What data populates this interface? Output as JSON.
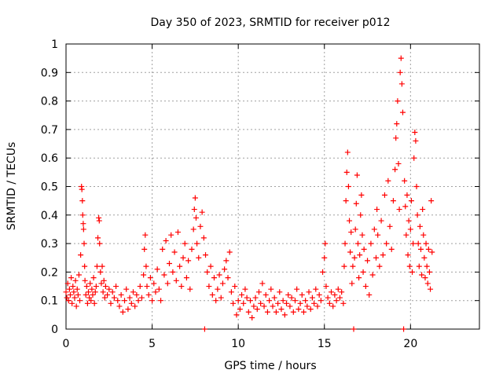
{
  "chart_data": {
    "type": "scatter",
    "title": "Day 350 of 2023, SRMTID for receiver p012",
    "xlabel": "GPS time / hours",
    "ylabel": "SRMTID / TECUs",
    "xlim": [
      0,
      24
    ],
    "ylim": [
      0,
      1
    ],
    "xticks": [
      0,
      5,
      10,
      15,
      20
    ],
    "xtick_labels": [
      "0",
      "5",
      "10",
      "15",
      "20"
    ],
    "yticks": [
      0,
      0.1,
      0.2,
      0.3,
      0.4,
      0.5,
      0.6,
      0.7,
      0.8,
      0.9,
      1
    ],
    "ytick_labels": [
      "0",
      "0.1",
      "0.2",
      "0.3",
      "0.4",
      "0.5",
      "0.6",
      "0.7",
      "0.8",
      "0.9",
      "1"
    ],
    "grid": true,
    "marker": "+",
    "marker_color": "#ff0000",
    "series": [
      {
        "name": "p012",
        "points": [
          [
            0.0,
            0.13
          ],
          [
            0.05,
            0.11
          ],
          [
            0.1,
            0.16
          ],
          [
            0.15,
            0.1
          ],
          [
            0.2,
            0.14
          ],
          [
            0.25,
            0.12
          ],
          [
            0.3,
            0.18
          ],
          [
            0.35,
            0.09
          ],
          [
            0.4,
            0.15
          ],
          [
            0.45,
            0.13
          ],
          [
            0.5,
            0.11
          ],
          [
            0.55,
            0.17
          ],
          [
            0.6,
            0.08
          ],
          [
            0.65,
            0.14
          ],
          [
            0.7,
            0.12
          ],
          [
            0.75,
            0.19
          ],
          [
            0.8,
            0.1
          ],
          [
            0.85,
            0.26
          ],
          [
            0.9,
            0.5
          ],
          [
            0.92,
            0.49
          ],
          [
            0.95,
            0.45
          ],
          [
            0.97,
            0.4
          ],
          [
            1.0,
            0.37
          ],
          [
            1.02,
            0.35
          ],
          [
            1.05,
            0.3
          ],
          [
            1.08,
            0.22
          ],
          [
            1.1,
            0.17
          ],
          [
            1.15,
            0.12
          ],
          [
            1.2,
            0.15
          ],
          [
            1.25,
            0.09
          ],
          [
            1.3,
            0.13
          ],
          [
            1.35,
            0.11
          ],
          [
            1.4,
            0.16
          ],
          [
            1.45,
            0.1
          ],
          [
            1.5,
            0.14
          ],
          [
            1.55,
            0.12
          ],
          [
            1.6,
            0.18
          ],
          [
            1.65,
            0.09
          ],
          [
            1.7,
            0.13
          ],
          [
            1.75,
            0.15
          ],
          [
            1.8,
            0.22
          ],
          [
            1.85,
            0.32
          ],
          [
            1.9,
            0.39
          ],
          [
            1.93,
            0.38
          ],
          [
            1.95,
            0.3
          ],
          [
            2.0,
            0.2
          ],
          [
            2.05,
            0.16
          ],
          [
            2.1,
            0.22
          ],
          [
            2.15,
            0.13
          ],
          [
            2.2,
            0.17
          ],
          [
            2.25,
            0.11
          ],
          [
            2.3,
            0.15
          ],
          [
            2.4,
            0.12
          ],
          [
            2.5,
            0.14
          ],
          [
            2.6,
            0.09
          ],
          [
            2.7,
            0.13
          ],
          [
            2.8,
            0.11
          ],
          [
            2.9,
            0.15
          ],
          [
            3.0,
            0.1
          ],
          [
            3.1,
            0.08
          ],
          [
            3.2,
            0.12
          ],
          [
            3.3,
            0.06
          ],
          [
            3.4,
            0.1
          ],
          [
            3.5,
            0.14
          ],
          [
            3.6,
            0.07
          ],
          [
            3.7,
            0.11
          ],
          [
            3.8,
            0.09
          ],
          [
            3.9,
            0.13
          ],
          [
            4.0,
            0.08
          ],
          [
            4.1,
            0.12
          ],
          [
            4.2,
            0.1
          ],
          [
            4.3,
            0.15
          ],
          [
            4.4,
            0.11
          ],
          [
            4.5,
            0.19
          ],
          [
            4.55,
            0.28
          ],
          [
            4.6,
            0.33
          ],
          [
            4.65,
            0.22
          ],
          [
            4.7,
            0.15
          ],
          [
            4.8,
            0.12
          ],
          [
            4.9,
            0.18
          ],
          [
            5.0,
            0.1
          ],
          [
            5.1,
            0.16
          ],
          [
            5.2,
            0.13
          ],
          [
            5.3,
            0.21
          ],
          [
            5.4,
            0.14
          ],
          [
            5.5,
            0.1
          ],
          [
            5.6,
            0.28
          ],
          [
            5.7,
            0.19
          ],
          [
            5.8,
            0.31
          ],
          [
            5.9,
            0.16
          ],
          [
            6.0,
            0.23
          ],
          [
            6.1,
            0.33
          ],
          [
            6.2,
            0.2
          ],
          [
            6.3,
            0.27
          ],
          [
            6.4,
            0.17
          ],
          [
            6.5,
            0.34
          ],
          [
            6.6,
            0.22
          ],
          [
            6.7,
            0.15
          ],
          [
            6.8,
            0.25
          ],
          [
            6.9,
            0.3
          ],
          [
            7.0,
            0.18
          ],
          [
            7.1,
            0.24
          ],
          [
            7.2,
            0.14
          ],
          [
            7.3,
            0.28
          ],
          [
            7.4,
            0.35
          ],
          [
            7.45,
            0.42
          ],
          [
            7.5,
            0.46
          ],
          [
            7.55,
            0.39
          ],
          [
            7.6,
            0.3
          ],
          [
            7.7,
            0.25
          ],
          [
            7.8,
            0.36
          ],
          [
            7.9,
            0.41
          ],
          [
            8.0,
            0.32
          ],
          [
            8.05,
            0.0
          ],
          [
            8.1,
            0.26
          ],
          [
            8.2,
            0.2
          ],
          [
            8.3,
            0.15
          ],
          [
            8.4,
            0.22
          ],
          [
            8.5,
            0.12
          ],
          [
            8.6,
            0.18
          ],
          [
            8.7,
            0.1
          ],
          [
            8.8,
            0.14
          ],
          [
            8.9,
            0.19
          ],
          [
            9.0,
            0.11
          ],
          [
            9.1,
            0.16
          ],
          [
            9.2,
            0.21
          ],
          [
            9.3,
            0.24
          ],
          [
            9.4,
            0.18
          ],
          [
            9.5,
            0.27
          ],
          [
            9.6,
            0.13
          ],
          [
            9.7,
            0.09
          ],
          [
            9.8,
            0.15
          ],
          [
            9.9,
            0.05
          ],
          [
            10.0,
            0.1
          ],
          [
            10.1,
            0.07
          ],
          [
            10.2,
            0.12
          ],
          [
            10.3,
            0.09
          ],
          [
            10.4,
            0.14
          ],
          [
            10.5,
            0.11
          ],
          [
            10.6,
            0.06
          ],
          [
            10.7,
            0.1
          ],
          [
            10.8,
            0.04
          ],
          [
            10.9,
            0.08
          ],
          [
            11.0,
            0.11
          ],
          [
            11.1,
            0.07
          ],
          [
            11.2,
            0.13
          ],
          [
            11.3,
            0.09
          ],
          [
            11.4,
            0.16
          ],
          [
            11.5,
            0.08
          ],
          [
            11.6,
            0.12
          ],
          [
            11.7,
            0.06
          ],
          [
            11.8,
            0.1
          ],
          [
            11.9,
            0.14
          ],
          [
            12.0,
            0.08
          ],
          [
            12.1,
            0.11
          ],
          [
            12.2,
            0.06
          ],
          [
            12.3,
            0.09
          ],
          [
            12.4,
            0.13
          ],
          [
            12.5,
            0.07
          ],
          [
            12.6,
            0.1
          ],
          [
            12.7,
            0.05
          ],
          [
            12.8,
            0.09
          ],
          [
            12.9,
            0.12
          ],
          [
            13.0,
            0.08
          ],
          [
            13.1,
            0.11
          ],
          [
            13.2,
            0.06
          ],
          [
            13.3,
            0.1
          ],
          [
            13.4,
            0.14
          ],
          [
            13.5,
            0.07
          ],
          [
            13.6,
            0.09
          ],
          [
            13.7,
            0.12
          ],
          [
            13.8,
            0.06
          ],
          [
            13.9,
            0.1
          ],
          [
            14.0,
            0.08
          ],
          [
            14.1,
            0.13
          ],
          [
            14.2,
            0.07
          ],
          [
            14.3,
            0.11
          ],
          [
            14.4,
            0.09
          ],
          [
            14.5,
            0.14
          ],
          [
            14.6,
            0.08
          ],
          [
            14.7,
            0.12
          ],
          [
            14.8,
            0.1
          ],
          [
            14.9,
            0.2
          ],
          [
            15.0,
            0.25
          ],
          [
            15.05,
            0.3
          ],
          [
            15.1,
            0.15
          ],
          [
            15.2,
            0.11
          ],
          [
            15.3,
            0.09
          ],
          [
            15.4,
            0.13
          ],
          [
            15.5,
            0.08
          ],
          [
            15.6,
            0.12
          ],
          [
            15.7,
            0.1
          ],
          [
            15.8,
            0.14
          ],
          [
            15.9,
            0.11
          ],
          [
            16.0,
            0.13
          ],
          [
            16.1,
            0.09
          ],
          [
            16.15,
            0.22
          ],
          [
            16.2,
            0.3
          ],
          [
            16.25,
            0.45
          ],
          [
            16.3,
            0.55
          ],
          [
            16.35,
            0.62
          ],
          [
            16.4,
            0.5
          ],
          [
            16.45,
            0.38
          ],
          [
            16.5,
            0.27
          ],
          [
            16.55,
            0.34
          ],
          [
            16.6,
            0.16
          ],
          [
            16.65,
            0.22
          ],
          [
            16.7,
            0.0
          ],
          [
            16.75,
            0.25
          ],
          [
            16.8,
            0.35
          ],
          [
            16.85,
            0.44
          ],
          [
            16.9,
            0.54
          ],
          [
            16.95,
            0.3
          ],
          [
            17.0,
            0.18
          ],
          [
            17.05,
            0.26
          ],
          [
            17.1,
            0.4
          ],
          [
            17.15,
            0.47
          ],
          [
            17.2,
            0.33
          ],
          [
            17.25,
            0.2
          ],
          [
            17.3,
            0.28
          ],
          [
            17.4,
            0.15
          ],
          [
            17.5,
            0.24
          ],
          [
            17.6,
            0.12
          ],
          [
            17.7,
            0.3
          ],
          [
            17.8,
            0.19
          ],
          [
            17.9,
            0.35
          ],
          [
            18.0,
            0.25
          ],
          [
            18.05,
            0.42
          ],
          [
            18.1,
            0.33
          ],
          [
            18.2,
            0.22
          ],
          [
            18.3,
            0.38
          ],
          [
            18.4,
            0.26
          ],
          [
            18.5,
            0.47
          ],
          [
            18.6,
            0.3
          ],
          [
            18.7,
            0.52
          ],
          [
            18.8,
            0.36
          ],
          [
            18.9,
            0.28
          ],
          [
            19.0,
            0.45
          ],
          [
            19.1,
            0.56
          ],
          [
            19.15,
            0.67
          ],
          [
            19.2,
            0.72
          ],
          [
            19.25,
            0.8
          ],
          [
            19.3,
            0.58
          ],
          [
            19.35,
            0.42
          ],
          [
            19.4,
            0.9
          ],
          [
            19.45,
            0.95
          ],
          [
            19.5,
            0.86
          ],
          [
            19.55,
            0.76
          ],
          [
            19.6,
            0.0
          ],
          [
            19.65,
            0.52
          ],
          [
            19.7,
            0.43
          ],
          [
            19.75,
            0.33
          ],
          [
            19.8,
            0.47
          ],
          [
            19.85,
            0.26
          ],
          [
            19.9,
            0.38
          ],
          [
            19.95,
            0.22
          ],
          [
            20.0,
            0.35
          ],
          [
            20.05,
            0.45
          ],
          [
            20.1,
            0.2
          ],
          [
            20.15,
            0.3
          ],
          [
            20.2,
            0.6
          ],
          [
            20.25,
            0.69
          ],
          [
            20.3,
            0.66
          ],
          [
            20.35,
            0.5
          ],
          [
            20.4,
            0.4
          ],
          [
            20.45,
            0.3
          ],
          [
            20.5,
            0.22
          ],
          [
            20.55,
            0.36
          ],
          [
            20.6,
            0.28
          ],
          [
            20.65,
            0.19
          ],
          [
            20.7,
            0.42
          ],
          [
            20.75,
            0.33
          ],
          [
            20.8,
            0.25
          ],
          [
            20.85,
            0.18
          ],
          [
            20.9,
            0.3
          ],
          [
            20.95,
            0.22
          ],
          [
            21.0,
            0.16
          ],
          [
            21.05,
            0.28
          ],
          [
            21.1,
            0.2
          ],
          [
            21.15,
            0.14
          ],
          [
            21.2,
            0.45
          ],
          [
            21.25,
            0.27
          ]
        ]
      }
    ]
  }
}
